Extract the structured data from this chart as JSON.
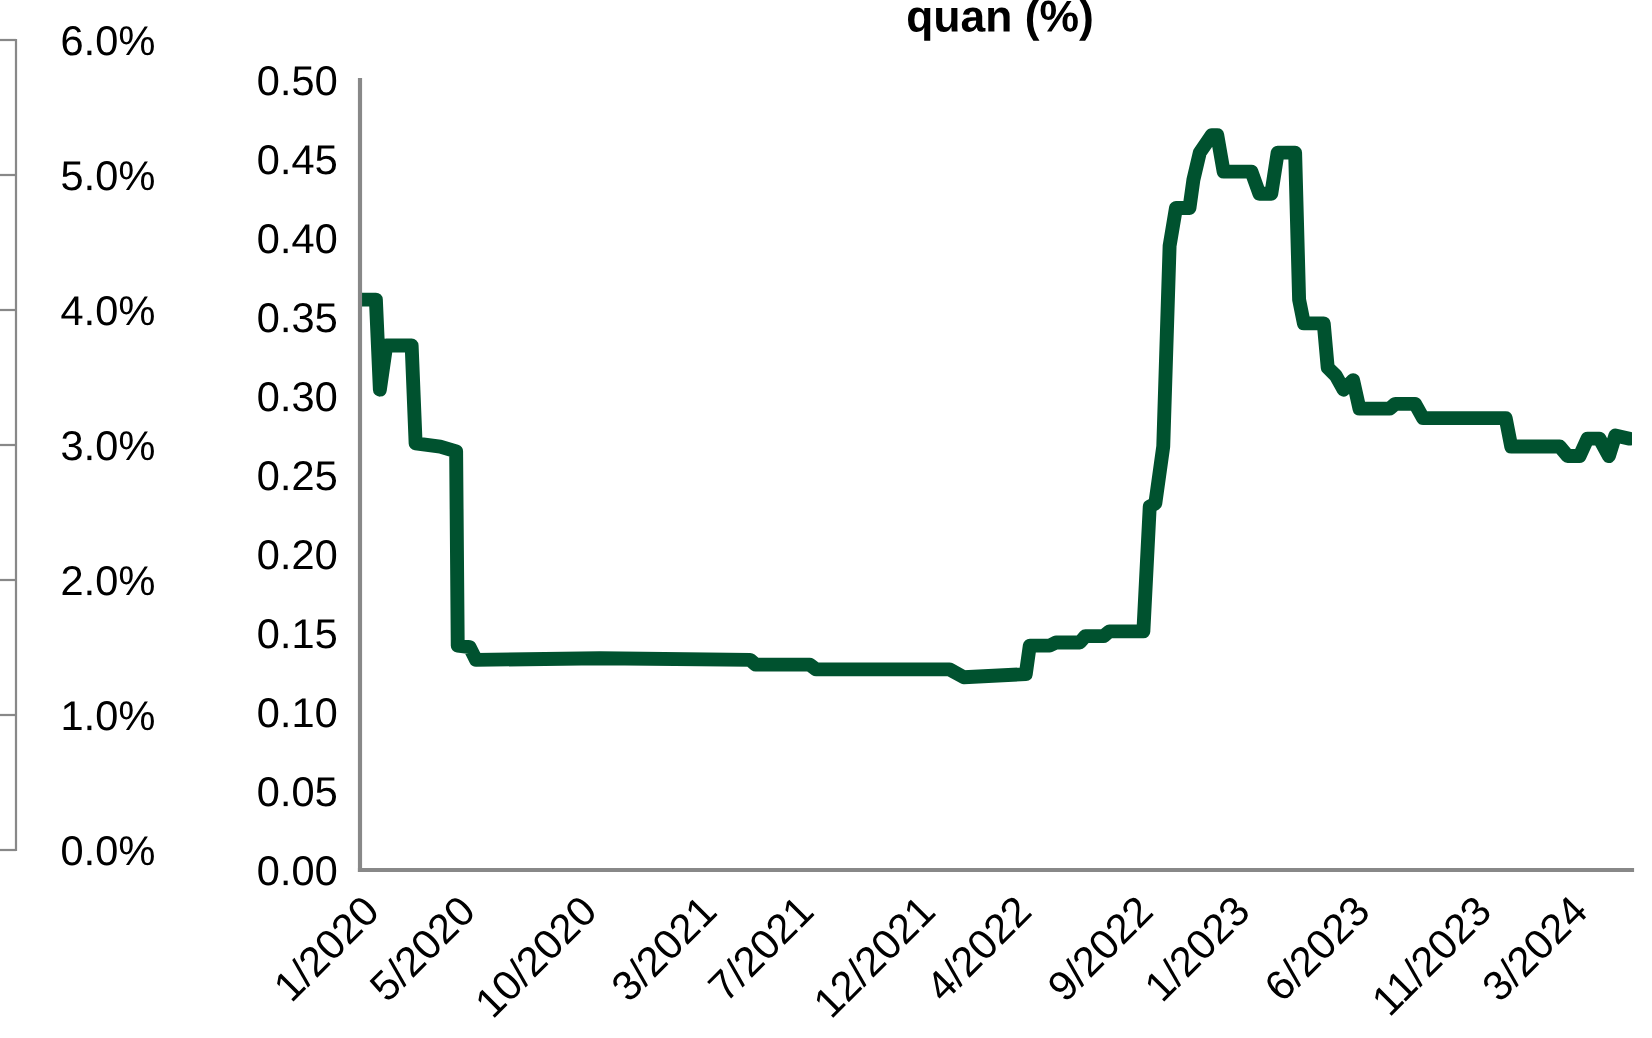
{
  "chart_data": {
    "type": "line",
    "title": "quan (%)",
    "x": [
      "2020-01-01",
      "2020-01-21",
      "2020-01-26",
      "2020-02-03",
      "2020-03-06",
      "2020-03-11",
      "2020-04-11",
      "2020-05-01",
      "2020-05-03",
      "2020-05-18",
      "2020-05-26",
      "2020-10-29",
      "2021-05-06",
      "2021-05-13",
      "2021-07-20",
      "2021-07-28",
      "2022-01-12",
      "2022-01-30",
      "2022-04-18",
      "2022-04-23",
      "2022-05-18",
      "2022-05-26",
      "2022-06-25",
      "2022-07-02",
      "2022-07-25",
      "2022-08-01",
      "2022-09-13",
      "2022-09-21",
      "2022-09-28",
      "2022-10-08",
      "2022-10-16",
      "2022-10-24",
      "2022-11-10",
      "2022-11-15",
      "2022-11-23",
      "2022-12-08",
      "2022-12-15",
      "2022-12-23",
      "2023-01-27",
      "2023-02-06",
      "2023-02-21",
      "2023-03-01",
      "2023-03-23",
      "2023-03-28",
      "2023-04-03",
      "2023-04-28",
      "2023-05-03",
      "2023-05-13",
      "2023-05-23",
      "2023-06-04",
      "2023-06-12",
      "2023-07-20",
      "2023-07-27",
      "2023-08-21",
      "2023-08-31",
      "2023-12-13",
      "2023-12-20",
      "2024-02-19",
      "2024-02-29",
      "2024-03-15",
      "2024-03-25",
      "2024-04-09",
      "2024-04-21",
      "2024-04-29",
      "2024-05-17"
    ],
    "series": [
      {
        "color": "#00522f",
        "values": [
          0.361,
          0.361,
          0.304,
          0.332,
          0.332,
          0.27,
          0.268,
          0.265,
          0.142,
          0.141,
          0.133,
          0.134,
          0.133,
          0.13,
          0.13,
          0.127,
          0.127,
          0.122,
          0.124,
          0.142,
          0.142,
          0.144,
          0.144,
          0.148,
          0.148,
          0.151,
          0.151,
          0.23,
          0.232,
          0.268,
          0.395,
          0.419,
          0.419,
          0.437,
          0.454,
          0.465,
          0.465,
          0.442,
          0.442,
          0.428,
          0.428,
          0.454,
          0.454,
          0.361,
          0.346,
          0.346,
          0.318,
          0.313,
          0.304,
          0.31,
          0.292,
          0.292,
          0.295,
          0.295,
          0.286,
          0.286,
          0.268,
          0.268,
          0.262,
          0.262,
          0.273,
          0.273,
          0.262,
          0.275,
          0.273
        ]
      }
    ],
    "xlim": [
      "2020-01-01",
      "2024-05-20"
    ],
    "xticks": [
      {
        "value": "2020-01-01",
        "label": "1/2020"
      },
      {
        "value": "2020-05-01",
        "label": "5/2020"
      },
      {
        "value": "2020-10-01",
        "label": "10/2020"
      },
      {
        "value": "2021-03-01",
        "label": "3/2021"
      },
      {
        "value": "2021-07-01",
        "label": "7/2021"
      },
      {
        "value": "2021-12-01",
        "label": "12/2021"
      },
      {
        "value": "2022-04-01",
        "label": "4/2022"
      },
      {
        "value": "2022-09-01",
        "label": "9/2022"
      },
      {
        "value": "2023-01-01",
        "label": "1/2023"
      },
      {
        "value": "2023-06-01",
        "label": "6/2023"
      },
      {
        "value": "2023-11-01",
        "label": "11/2023"
      },
      {
        "value": "2024-03-01",
        "label": "3/2024"
      }
    ],
    "ylim": [
      0,
      0.5
    ],
    "yticks": [
      {
        "value": 0,
        "label": "0.00"
      },
      {
        "value": 0.05,
        "label": "0.05"
      },
      {
        "value": 0.1,
        "label": "0.10"
      },
      {
        "value": 0.15,
        "label": "0.15"
      },
      {
        "value": 0.2,
        "label": "0.20"
      },
      {
        "value": 0.25,
        "label": "0.25"
      },
      {
        "value": 0.3,
        "label": "0.30"
      },
      {
        "value": 0.35,
        "label": "0.35"
      },
      {
        "value": 0.4,
        "label": "0.40"
      },
      {
        "value": 0.45,
        "label": "0.45"
      },
      {
        "value": 0.5,
        "label": "0.50"
      }
    ],
    "y2lim": [
      0,
      6
    ],
    "y2ticks": [
      {
        "value": 0,
        "label": "0.0%"
      },
      {
        "value": 1,
        "label": "1.0%"
      },
      {
        "value": 2,
        "label": "2.0%"
      },
      {
        "value": 3,
        "label": "3.0%"
      },
      {
        "value": 4,
        "label": "4.0%"
      },
      {
        "value": 5,
        "label": "5.0%"
      },
      {
        "value": 6,
        "label": "6.0%"
      }
    ],
    "grid": false,
    "legend": false,
    "marker": "none",
    "line_style": "solid"
  }
}
